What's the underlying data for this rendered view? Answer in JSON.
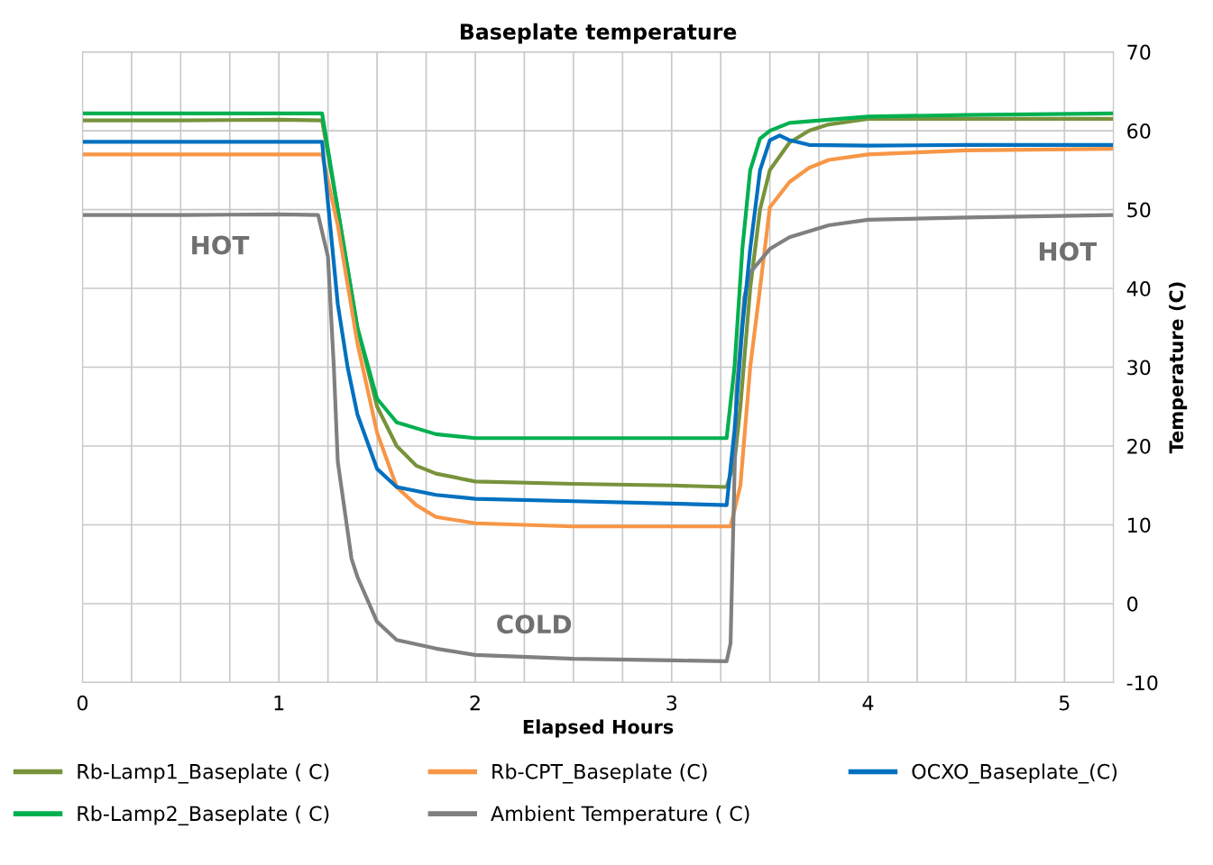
{
  "chart_data": {
    "type": "line",
    "title": "Baseplate temperature",
    "xlabel": "Elapsed Hours",
    "ylabel": "Temperature (C)",
    "xlim": [
      0,
      5.25
    ],
    "ylim": [
      -10,
      70
    ],
    "xticks": [
      0,
      {
        "value": 0.25,
        "label": null
      },
      {
        "value": 0.5,
        "label": null
      },
      {
        "value": 0.75,
        "label": null
      },
      1,
      {
        "value": 1.25,
        "label": null
      },
      {
        "value": 1.5,
        "label": null
      },
      {
        "value": 1.75,
        "label": null
      },
      2,
      {
        "value": 2.25,
        "label": null
      },
      {
        "value": 2.5,
        "label": null
      },
      {
        "value": 2.75,
        "label": null
      },
      3,
      {
        "value": 3.25,
        "label": null
      },
      {
        "value": 3.5,
        "label": null
      },
      {
        "value": 3.75,
        "label": null
      },
      4,
      {
        "value": 4.25,
        "label": null
      },
      {
        "value": 4.5,
        "label": null
      },
      {
        "value": 4.75,
        "label": null
      },
      5,
      {
        "value": 5.25,
        "label": null
      }
    ],
    "yticks": [
      -10,
      0,
      10,
      20,
      30,
      40,
      50,
      60,
      70
    ],
    "grid": true,
    "legend": "bottom",
    "marker": "none",
    "line_style": "solid",
    "annotations": [
      "HOT",
      "HOT",
      "COLD"
    ],
    "series": [
      {
        "name": "Rb-Lamp1_Baseplate ( C)",
        "color": "#77933c",
        "x": [
          0,
          0.5,
          1.0,
          1.22,
          1.3,
          1.4,
          1.5,
          1.6,
          1.7,
          1.8,
          2.0,
          2.5,
          3.0,
          3.28,
          3.32,
          3.35,
          3.4,
          3.45,
          3.5,
          3.6,
          3.7,
          3.8,
          4.0,
          4.5,
          5.25
        ],
        "values": [
          61.3,
          61.3,
          61.4,
          61.3,
          50,
          35,
          25,
          20,
          17.5,
          16.5,
          15.5,
          15.2,
          15.0,
          14.8,
          18,
          25,
          40,
          50,
          55,
          58.5,
          60,
          60.8,
          61.5,
          61.5,
          61.5
        ]
      },
      {
        "name": "Rb-Lamp2_Baseplate ( C)",
        "color": "#00b050",
        "x": [
          0,
          0.5,
          1.0,
          1.22,
          1.3,
          1.4,
          1.5,
          1.6,
          1.8,
          2.0,
          2.5,
          3.0,
          3.28,
          3.32,
          3.36,
          3.4,
          3.45,
          3.5,
          3.6,
          4.0,
          4.5,
          5.25
        ],
        "values": [
          62.2,
          62.2,
          62.2,
          62.2,
          50,
          35,
          26,
          23,
          21.5,
          21,
          21,
          21,
          21,
          30,
          45,
          55,
          59,
          60,
          61,
          61.8,
          62,
          62.2
        ]
      },
      {
        "name": "Rb-CPT_Baseplate (C)",
        "color": "#f79646",
        "x": [
          0,
          0.5,
          1.0,
          1.22,
          1.3,
          1.4,
          1.5,
          1.6,
          1.7,
          1.8,
          2.0,
          2.5,
          3.0,
          3.3,
          3.35,
          3.4,
          3.45,
          3.5,
          3.6,
          3.7,
          3.8,
          4.0,
          4.5,
          5.25
        ],
        "values": [
          57.0,
          57.0,
          57.0,
          57.0,
          48,
          33,
          21.7,
          14.8,
          12.5,
          11,
          10.2,
          9.8,
          9.8,
          9.8,
          15,
          30,
          40,
          50.3,
          53.5,
          55.3,
          56.3,
          57,
          57.5,
          57.7
        ]
      },
      {
        "name": "Ambient Temperature ( C)",
        "color": "#808080",
        "x": [
          0,
          0.5,
          1.0,
          1.2,
          1.25,
          1.28,
          1.3,
          1.37,
          1.4,
          1.5,
          1.6,
          1.8,
          2.0,
          2.5,
          3.0,
          3.28,
          3.3,
          3.33,
          3.37,
          3.4,
          3.5,
          3.6,
          3.8,
          4.0,
          4.5,
          5.25
        ],
        "values": [
          49.3,
          49.3,
          49.4,
          49.3,
          44,
          30,
          18,
          5.7,
          3.4,
          -2.3,
          -4.6,
          -5.7,
          -6.5,
          -7,
          -7.2,
          -7.3,
          -5,
          27,
          38.9,
          42,
          45,
          46.5,
          48,
          48.7,
          49,
          49.3
        ]
      },
      {
        "name": "OCXO_Baseplate_(C)",
        "color": "#0070c0",
        "x": [
          0,
          0.5,
          1.0,
          1.22,
          1.3,
          1.35,
          1.4,
          1.5,
          1.6,
          1.8,
          2.0,
          2.5,
          3.0,
          3.28,
          3.32,
          3.36,
          3.4,
          3.45,
          3.5,
          3.55,
          3.6,
          3.7,
          4.0,
          4.5,
          5.25
        ],
        "values": [
          58.6,
          58.6,
          58.6,
          58.6,
          38,
          30,
          24,
          17.1,
          14.8,
          13.8,
          13.3,
          13,
          12.7,
          12.5,
          22,
          35,
          45,
          55,
          58.8,
          59.4,
          58.8,
          58.2,
          58.1,
          58.2,
          58.2
        ]
      }
    ]
  }
}
